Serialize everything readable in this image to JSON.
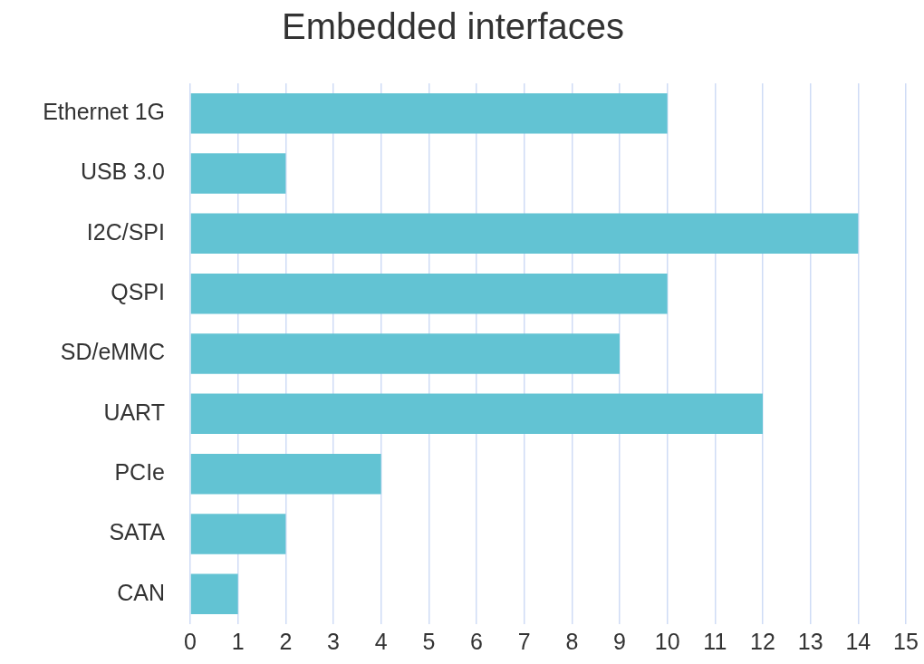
{
  "chart_data": {
    "type": "bar",
    "orientation": "horizontal",
    "title": "Embedded interfaces",
    "categories": [
      "Ethernet 1G",
      "USB 3.0",
      "I2C/SPI",
      "QSPI",
      "SD/eMMC",
      "UART",
      "PCIe",
      "SATA",
      "CAN"
    ],
    "values": [
      10,
      2,
      14,
      10,
      9,
      12,
      4,
      2,
      1
    ],
    "color": "#62c3d3",
    "xlim": [
      0,
      15
    ],
    "xticks": [
      0,
      1,
      2,
      3,
      4,
      5,
      6,
      7,
      8,
      9,
      10,
      11,
      12,
      13,
      14,
      15
    ],
    "grid": "x",
    "legend": false
  }
}
